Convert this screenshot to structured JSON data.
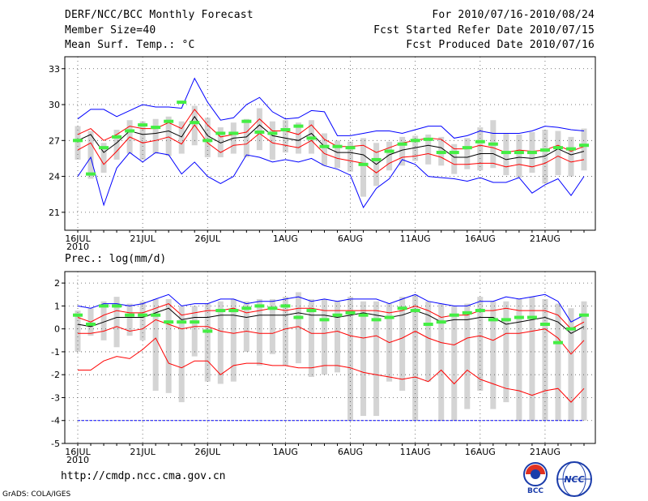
{
  "header": {
    "title": "DERF/NCC/BCC Monthly Forecast",
    "member_size": "Member Size=40",
    "variable": "Mean Surf. Temp.: °C",
    "period": "For 2010/07/16-2010/08/24",
    "started": "Fcst Started Refer Date 2010/07/15",
    "produced": "Fcst Produced Date 2010/07/16"
  },
  "chart_data": [
    {
      "type": "line",
      "title": "Mean Surf. Temp.: °C",
      "xlabel": "",
      "ylabel": "",
      "ylim": [
        19.5,
        34
      ],
      "yticks": [
        21,
        24,
        27,
        30,
        33
      ],
      "xtick_labels": [
        "16JUL",
        "21JUL",
        "26JUL",
        "1AUG",
        "6AUG",
        "11AUG",
        "16AUG",
        "21AUG"
      ],
      "xtick_days": [
        1,
        6,
        11,
        17,
        22,
        27,
        32,
        37
      ],
      "year_label": "2010",
      "days": 40,
      "series": [
        {
          "name": "max",
          "color": "#0000ff",
          "values": [
            28.8,
            29.6,
            29.6,
            29.0,
            29.5,
            30.0,
            29.8,
            29.8,
            29.7,
            32.2,
            30.2,
            28.7,
            28.9,
            30.0,
            30.6,
            29.4,
            28.8,
            28.9,
            29.5,
            29.4,
            27.4,
            27.4,
            27.6,
            27.8,
            27.8,
            27.6,
            27.9,
            28.2,
            28.2,
            27.2,
            27.4,
            27.8,
            27.6,
            27.6,
            27.6,
            27.8,
            28.2,
            28.1,
            27.9,
            27.8
          ]
        },
        {
          "name": "upper",
          "color": "#ff0000",
          "values": [
            27.5,
            28.0,
            27.0,
            27.5,
            28.2,
            28.0,
            28.0,
            28.5,
            28.0,
            29.6,
            28.3,
            27.3,
            27.5,
            27.7,
            28.8,
            27.8,
            27.8,
            27.5,
            28.3,
            27.1,
            26.5,
            26.5,
            26.6,
            26.0,
            26.4,
            26.8,
            27.0,
            27.2,
            27.1,
            26.3,
            26.3,
            26.6,
            26.4,
            26.0,
            26.2,
            26.1,
            26.2,
            26.6,
            26.1,
            26.5
          ]
        },
        {
          "name": "mean",
          "color": "#000000",
          "values": [
            27.0,
            27.5,
            26.0,
            26.8,
            27.8,
            27.5,
            27.6,
            27.8,
            27.3,
            29.0,
            27.4,
            26.8,
            27.2,
            27.3,
            28.3,
            27.4,
            27.2,
            27.0,
            27.6,
            26.5,
            26.0,
            26.0,
            25.8,
            25.0,
            25.8,
            26.2,
            26.4,
            26.6,
            26.4,
            25.6,
            25.6,
            25.9,
            25.9,
            25.4,
            25.6,
            25.5,
            25.7,
            26.3,
            25.8,
            26.1
          ]
        },
        {
          "name": "lower",
          "color": "#ff0000",
          "values": [
            26.2,
            26.8,
            25.0,
            26.1,
            27.3,
            26.8,
            27.0,
            27.3,
            26.7,
            28.3,
            26.8,
            26.0,
            26.6,
            26.7,
            27.6,
            26.8,
            26.6,
            26.4,
            27.0,
            25.9,
            25.5,
            25.3,
            25.1,
            24.3,
            25.1,
            25.6,
            25.7,
            25.9,
            25.6,
            25.0,
            25.0,
            25.1,
            25.1,
            24.8,
            25.0,
            24.8,
            25.1,
            25.7,
            25.2,
            25.4
          ]
        },
        {
          "name": "min",
          "color": "#0000ff",
          "values": [
            24.0,
            25.6,
            21.6,
            24.7,
            26.0,
            25.2,
            26.0,
            25.8,
            24.2,
            25.2,
            24.0,
            23.4,
            24.0,
            25.8,
            25.6,
            25.2,
            25.4,
            25.2,
            25.5,
            24.9,
            24.6,
            24.1,
            21.4,
            23.0,
            23.8,
            25.4,
            25.0,
            24.0,
            23.9,
            23.8,
            23.6,
            23.9,
            23.5,
            23.5,
            23.9,
            22.6,
            23.3,
            23.8,
            22.4,
            24.0
          ]
        },
        {
          "name": "observed",
          "color": "#44ee44",
          "values": [
            27.0,
            24.2,
            26.4,
            27.3,
            27.8,
            28.3,
            28.1,
            28.6,
            30.2,
            28.5,
            27.0,
            27.6,
            27.6,
            28.6,
            27.7,
            27.6,
            27.9,
            28.2,
            27.2,
            26.5,
            26.5,
            26.4,
            25.0,
            25.4,
            26.1,
            26.7,
            27.0,
            27.1,
            26.0,
            26.0,
            26.4,
            26.9,
            26.7,
            26.0,
            26.0,
            26.0,
            26.2,
            26.4,
            26.3,
            26.6
          ]
        },
        {
          "name": "box_high",
          "color": "#d4d4d4",
          "values": [
            28.2,
            27.8,
            26.8,
            27.9,
            28.7,
            28.6,
            28.8,
            29.0,
            28.6,
            29.9,
            28.9,
            28.1,
            28.5,
            28.8,
            29.7,
            28.6,
            28.7,
            28.5,
            28.7,
            27.6,
            27.0,
            26.9,
            27.2,
            26.8,
            26.9,
            27.3,
            27.4,
            27.5,
            27.3,
            26.7,
            27.2,
            28.1,
            28.7,
            27.6,
            27.5,
            27.7,
            27.9,
            27.8,
            27.3,
            28.0
          ]
        },
        {
          "name": "box_low",
          "color": "#d4d4d4",
          "values": [
            25.4,
            23.8,
            24.3,
            25.4,
            25.9,
            25.4,
            25.9,
            25.7,
            25.9,
            26.6,
            25.6,
            25.6,
            25.9,
            25.6,
            26.2,
            25.4,
            26.0,
            25.9,
            25.9,
            24.9,
            24.7,
            24.4,
            22.3,
            23.2,
            24.5,
            24.9,
            25.3,
            25.0,
            24.9,
            24.2,
            24.6,
            24.5,
            24.7,
            24.1,
            23.9,
            24.3,
            23.4,
            24.1,
            24.0,
            24.5
          ]
        }
      ]
    },
    {
      "type": "line",
      "title": "Prec.: log(mm/d)",
      "xlabel": "",
      "ylabel": "",
      "ylim": [
        -5,
        2.5
      ],
      "yticks": [
        -5,
        -4,
        -3,
        -2,
        -1,
        0,
        1,
        2
      ],
      "xtick_labels": [
        "16JUL",
        "21JUL",
        "26JUL",
        "1AUG",
        "6AUG",
        "11AUG",
        "16AUG",
        "21AUG"
      ],
      "xtick_days": [
        1,
        6,
        11,
        17,
        22,
        27,
        32,
        37
      ],
      "year_label": "2010",
      "days": 40,
      "series": [
        {
          "name": "max",
          "color": "#0000ff",
          "values": [
            1.0,
            0.9,
            1.1,
            1.1,
            1.0,
            1.1,
            1.3,
            1.5,
            1.0,
            1.1,
            1.1,
            1.3,
            1.3,
            1.1,
            1.2,
            1.2,
            1.3,
            1.4,
            1.2,
            1.3,
            1.2,
            1.3,
            1.3,
            1.3,
            1.1,
            1.3,
            1.5,
            1.2,
            1.1,
            1.0,
            1.0,
            1.2,
            1.2,
            1.4,
            1.3,
            1.4,
            1.5,
            1.2,
            0.3,
            0.6
          ]
        },
        {
          "name": "upper",
          "color": "#ff0000",
          "values": [
            0.5,
            0.3,
            0.6,
            0.8,
            0.7,
            0.7,
            0.9,
            1.1,
            0.6,
            0.7,
            0.8,
            0.8,
            0.9,
            0.7,
            0.8,
            0.9,
            0.8,
            0.9,
            0.9,
            0.8,
            0.8,
            0.8,
            0.8,
            0.8,
            0.7,
            0.8,
            1.0,
            0.8,
            0.5,
            0.6,
            0.6,
            0.8,
            0.8,
            0.9,
            0.8,
            0.8,
            0.8,
            0.6,
            0.0,
            0.3
          ]
        },
        {
          "name": "mean",
          "color": "#000000",
          "values": [
            0.2,
            0.1,
            0.3,
            0.5,
            0.5,
            0.5,
            0.7,
            0.9,
            0.4,
            0.5,
            0.5,
            0.6,
            0.6,
            0.5,
            0.6,
            0.6,
            0.6,
            0.7,
            0.6,
            0.6,
            0.5,
            0.6,
            0.7,
            0.6,
            0.5,
            0.6,
            0.8,
            0.6,
            0.3,
            0.4,
            0.4,
            0.5,
            0.5,
            0.2,
            0.3,
            0.4,
            0.5,
            0.3,
            -0.2,
            0.1
          ]
        },
        {
          "name": "lower",
          "color": "#ff0000",
          "values": [
            -0.2,
            -0.2,
            -0.1,
            0.1,
            -0.1,
            0.0,
            0.4,
            0.2,
            0.0,
            0.1,
            0.1,
            -0.1,
            -0.2,
            -0.1,
            -0.2,
            -0.2,
            0.0,
            0.1,
            -0.2,
            -0.2,
            -0.1,
            -0.3,
            -0.4,
            -0.3,
            -0.6,
            -0.4,
            -0.1,
            -0.4,
            -0.6,
            -0.7,
            -0.4,
            -0.3,
            -0.5,
            -0.2,
            -0.2,
            -0.1,
            0.0,
            -0.4,
            -1.1,
            -0.5
          ]
        },
        {
          "name": "min",
          "color": "#ff0000",
          "values": [
            -1.8,
            -1.8,
            -1.4,
            -1.2,
            -1.3,
            -0.9,
            -0.4,
            -1.5,
            -1.7,
            -1.4,
            -1.4,
            -2.0,
            -1.6,
            -1.5,
            -1.5,
            -1.6,
            -1.6,
            -1.7,
            -1.7,
            -1.6,
            -1.6,
            -1.7,
            -1.9,
            -2.0,
            -2.1,
            -2.2,
            -2.1,
            -2.3,
            -1.8,
            -2.4,
            -1.8,
            -2.2,
            -2.4,
            -2.6,
            -2.7,
            -2.9,
            -2.7,
            -2.6,
            -3.2,
            -2.6
          ]
        },
        {
          "name": "floor",
          "color": "#0000ff",
          "values": [
            -4.0,
            -4.0,
            -4.0,
            -4.0,
            -4.0,
            -4.0,
            -4.0,
            -4.0,
            -4.0,
            -4.0,
            -4.0,
            -4.0,
            -4.0,
            -4.0,
            -4.0,
            -4.0,
            -4.0,
            -4.0,
            -4.0,
            -4.0,
            -4.0,
            -4.0,
            -4.0,
            -4.0,
            -4.0,
            -4.0,
            -4.0,
            -4.0,
            -4.0,
            -4.0,
            -4.0,
            -4.0,
            -4.0,
            -4.0,
            -4.0,
            -4.0,
            -4.0,
            -4.0,
            -4.0,
            -4.0
          ]
        },
        {
          "name": "observed",
          "color": "#44ee44",
          "values": [
            0.6,
            0.2,
            1.0,
            1.0,
            0.6,
            0.6,
            0.6,
            0.3,
            0.3,
            0.3,
            -0.1,
            0.8,
            0.8,
            0.9,
            1.0,
            0.9,
            1.0,
            0.5,
            0.8,
            0.4,
            0.6,
            0.7,
            0.6,
            0.4,
            0.5,
            0.9,
            0.8,
            0.2,
            0.3,
            0.6,
            0.7,
            0.8,
            0.4,
            0.4,
            0.5,
            0.5,
            0.2,
            -0.6,
            0.0,
            0.6
          ]
        },
        {
          "name": "box_high",
          "color": "#d4d4d4",
          "values": [
            0.8,
            0.9,
            1.2,
            1.4,
            1.1,
            1.2,
            1.3,
            1.3,
            1.0,
            1.0,
            1.1,
            1.2,
            1.3,
            1.2,
            1.3,
            1.3,
            1.4,
            1.6,
            1.3,
            1.3,
            1.2,
            1.4,
            1.2,
            1.2,
            1.1,
            1.4,
            1.5,
            1.2,
            1.1,
            1.0,
            1.1,
            1.4,
            1.2,
            1.2,
            1.3,
            1.4,
            1.3,
            1.1,
            0.9,
            1.2
          ]
        },
        {
          "name": "box_low",
          "color": "#d4d4d4",
          "values": [
            -1.0,
            -0.3,
            -0.5,
            -0.8,
            -0.3,
            -0.5,
            -2.7,
            -2.8,
            -3.2,
            -1.2,
            -2.3,
            -2.4,
            -2.3,
            -1.0,
            -1.6,
            -1.1,
            -1.6,
            -1.5,
            -2.1,
            -2.0,
            -1.9,
            -4.0,
            -3.8,
            -3.8,
            -2.3,
            -2.7,
            -4.0,
            -2.3,
            -4.0,
            -4.0,
            -3.5,
            -2.7,
            -3.5,
            -3.2,
            -4.0,
            -4.0,
            -4.0,
            -4.0,
            -4.0,
            -4.0
          ]
        }
      ]
    }
  ],
  "footer": {
    "url": "http://cmdp.ncc.cma.gov.cn",
    "grads": "GrADS: COLA/IGES",
    "logo_bcc": "BCC",
    "logo_ncc": "NCC"
  }
}
